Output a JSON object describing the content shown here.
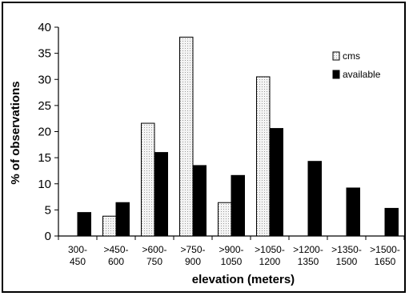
{
  "chart_data": {
    "type": "bar",
    "xlabel": "elevation (meters)",
    "ylabel": "% of observations",
    "ylim": [
      0,
      40
    ],
    "yticks": [
      "0",
      "5",
      "10",
      "15",
      "20",
      "25",
      "30",
      "35",
      "40"
    ],
    "grid": false,
    "legend_position": "top-right",
    "categories": [
      [
        "300-",
        "450"
      ],
      [
        ">450-",
        "600"
      ],
      [
        ">600-",
        "750"
      ],
      [
        ">750-",
        "900"
      ],
      [
        ">900-",
        "1050"
      ],
      [
        ">1050-",
        "1200"
      ],
      [
        ">1200-",
        "1350"
      ],
      [
        ">1350-",
        "1500"
      ],
      [
        ">1500-",
        "1650"
      ]
    ],
    "series": [
      {
        "name": "cms",
        "values": [
          0,
          3.8,
          21.6,
          38.1,
          6.4,
          30.5,
          0,
          0,
          0
        ],
        "pattern": "dotted-light",
        "color": "#e8e8e8"
      },
      {
        "name": "available",
        "values": [
          4.5,
          6.4,
          16.0,
          13.5,
          11.6,
          20.6,
          14.3,
          9.2,
          5.3
        ],
        "pattern": "solid",
        "color": "#000000"
      }
    ]
  }
}
